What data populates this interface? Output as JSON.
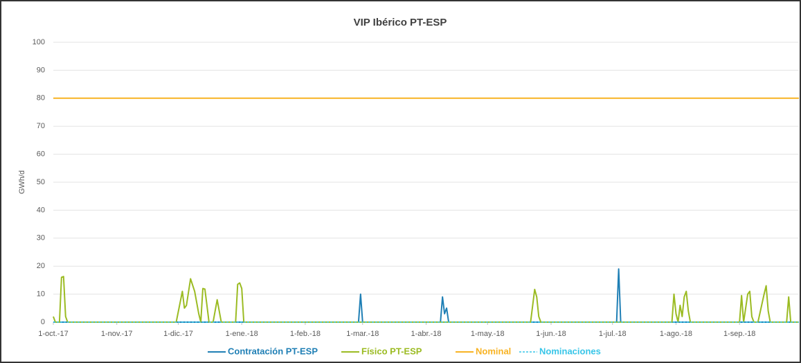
{
  "chart_data": {
    "type": "line",
    "title": "VIP Ibérico PT-ESP",
    "y_label": "GWh/d",
    "xlim": [
      "2017-10-01",
      "2018-09-30"
    ],
    "xticks": [
      {
        "value": "2017-10-01",
        "label": "1-oct.-17"
      },
      {
        "value": "2017-11-01",
        "label": "1-nov.-17"
      },
      {
        "value": "2017-12-01",
        "label": "1-dic.-17"
      },
      {
        "value": "2018-01-01",
        "label": "1-ene.-18"
      },
      {
        "value": "2018-02-01",
        "label": "1-feb.-18"
      },
      {
        "value": "2018-03-01",
        "label": "1-mar.-18"
      },
      {
        "value": "2018-04-01",
        "label": "1-abr.-18"
      },
      {
        "value": "2018-05-01",
        "label": "1-may.-18"
      },
      {
        "value": "2018-06-01",
        "label": "1-jun.-18"
      },
      {
        "value": "2018-07-01",
        "label": "1-jul.-18"
      },
      {
        "value": "2018-08-01",
        "label": "1-ago.-18"
      },
      {
        "value": "2018-09-01",
        "label": "1-sep.-18"
      }
    ],
    "ylim": [
      0,
      100
    ],
    "yticks": [
      0,
      10,
      20,
      30,
      40,
      50,
      60,
      70,
      80,
      90,
      100
    ],
    "grid": true,
    "legend": "bottom",
    "series": [
      {
        "name": "Contratación PT-ESP",
        "color": "#1f7fb5",
        "line_style": "solid",
        "x": [
          "2017-10-01",
          "2018-02-27",
          "2018-02-28",
          "2018-03-01",
          "2018-04-08",
          "2018-04-09",
          "2018-04-10",
          "2018-04-11",
          "2018-04-12",
          "2018-07-03",
          "2018-07-04",
          "2018-07-05",
          "2018-09-30"
        ],
        "values": [
          0,
          0,
          10,
          0,
          0,
          9,
          3,
          5,
          0,
          0,
          19,
          0,
          0
        ]
      },
      {
        "name": "Físico PT-ESP",
        "color": "#9bbb22",
        "line_style": "solid",
        "x": [
          "2017-10-01",
          "2017-10-02",
          "2017-10-04",
          "2017-10-05",
          "2017-10-06",
          "2017-10-07",
          "2017-10-08",
          "2017-11-30",
          "2017-12-03",
          "2017-12-04",
          "2017-12-05",
          "2017-12-07",
          "2017-12-09",
          "2017-12-11",
          "2017-12-12",
          "2017-12-13",
          "2017-12-14",
          "2017-12-15",
          "2017-12-16",
          "2017-12-18",
          "2017-12-20",
          "2017-12-22",
          "2017-12-29",
          "2017-12-30",
          "2017-12-31",
          "2018-01-01",
          "2018-01-02",
          "2018-05-22",
          "2018-05-24",
          "2018-05-25",
          "2018-05-26",
          "2018-05-27",
          "2018-07-30",
          "2018-07-31",
          "2018-08-01",
          "2018-08-02",
          "2018-08-03",
          "2018-08-04",
          "2018-08-05",
          "2018-08-06",
          "2018-08-07",
          "2018-08-08",
          "2018-09-01",
          "2018-09-02",
          "2018-09-03",
          "2018-09-05",
          "2018-09-06",
          "2018-09-07",
          "2018-09-08",
          "2018-09-10",
          "2018-09-13",
          "2018-09-14",
          "2018-09-15",
          "2018-09-16",
          "2018-09-24",
          "2018-09-25",
          "2018-09-26",
          "2018-09-30"
        ],
        "values": [
          2,
          0,
          0,
          16,
          16.3,
          2,
          0,
          0,
          11,
          5,
          6,
          15.5,
          11,
          3,
          0,
          12,
          11.8,
          6,
          0,
          0,
          8,
          0,
          0,
          13.5,
          14,
          12,
          0,
          0,
          11.7,
          9,
          2,
          0,
          0,
          10,
          3,
          0,
          6,
          2,
          9,
          11,
          4,
          0,
          0,
          9.5,
          0,
          10,
          11,
          2,
          0,
          0,
          10,
          13,
          4,
          0,
          0,
          9,
          0,
          0
        ]
      },
      {
        "name": "Nominal",
        "color": "#f8b323",
        "line_style": "solid",
        "x": [
          "2017-10-01",
          "2018-09-30"
        ],
        "values": [
          80,
          80
        ]
      },
      {
        "name": "Nominaciones",
        "color": "#37c5e8",
        "line_style": "dashed",
        "x": [
          "2017-10-01",
          "2018-09-30"
        ],
        "values": [
          0,
          0
        ]
      }
    ]
  }
}
